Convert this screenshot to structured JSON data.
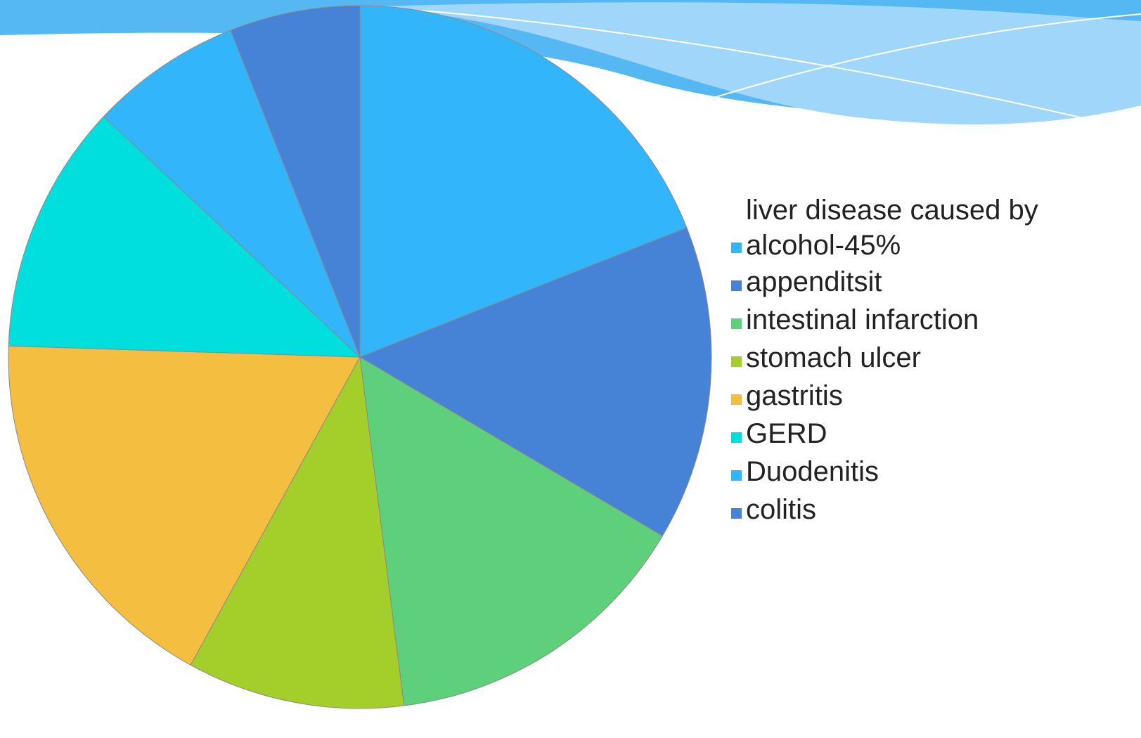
{
  "chart_data": {
    "type": "pie",
    "categories": [
      "liver disease caused by alcohol-45%",
      "appenditsit",
      "intestinal infarction",
      "stomach ulcer",
      "gastritis",
      "GERD",
      "Duodenitis",
      "colitis"
    ],
    "values": [
      19,
      14.5,
      14.5,
      10,
      17.5,
      11.5,
      7,
      6
    ],
    "colors": [
      "#33b5fb",
      "#4682d6",
      "#5ecf7a",
      "#a4cf2a",
      "#f4be40",
      "#00dede",
      "#33b5fb",
      "#4682d6"
    ]
  }
}
